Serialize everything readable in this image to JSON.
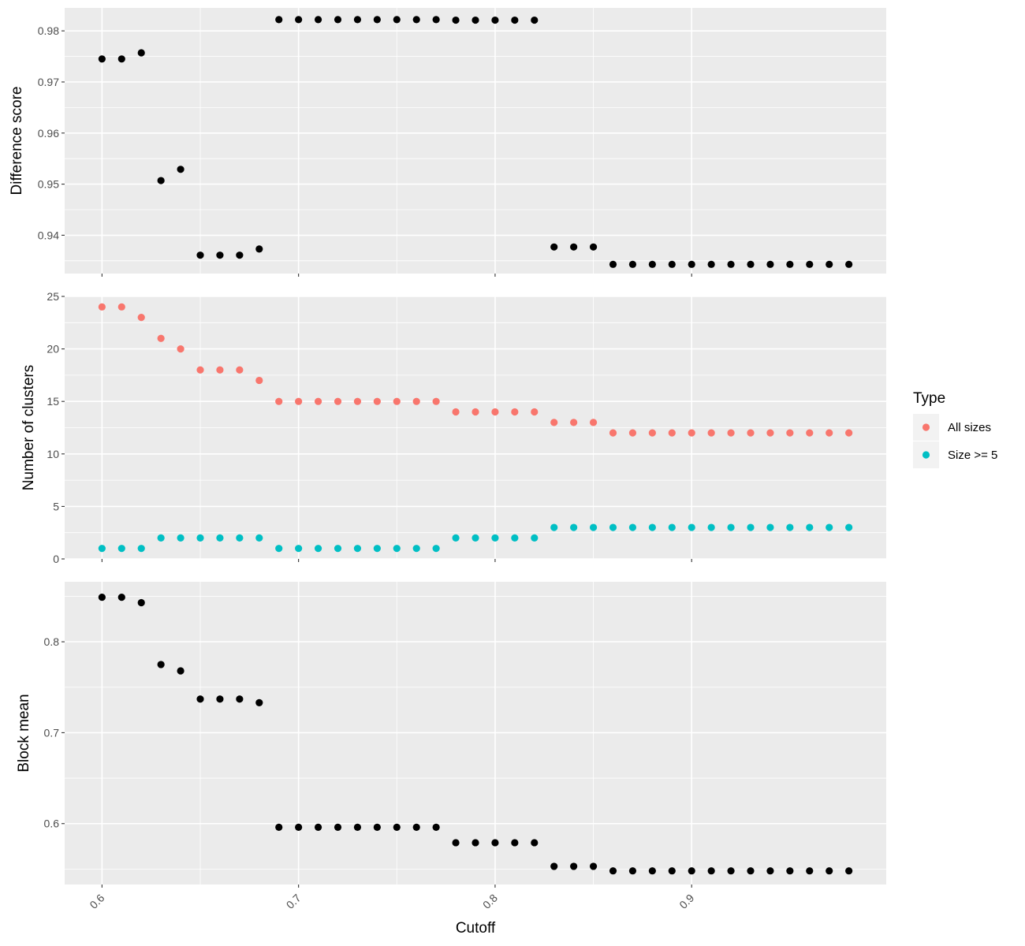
{
  "chart_data": [
    {
      "type": "scatter",
      "ylabel": "Difference score",
      "ylim": [
        0.9325,
        0.9845
      ],
      "y_ticks": [
        0.94,
        0.95,
        0.96,
        0.97,
        0.98
      ],
      "y_tick_labels": [
        "0.94",
        "0.95",
        "0.96",
        "0.97",
        "0.98"
      ],
      "series": [
        {
          "color": "#000000",
          "x": [
            0.6,
            0.61,
            0.62,
            0.63,
            0.64,
            0.65,
            0.66,
            0.67,
            0.68,
            0.69,
            0.7,
            0.71,
            0.72,
            0.73,
            0.74,
            0.75,
            0.76,
            0.77,
            0.78,
            0.79,
            0.8,
            0.81,
            0.82,
            0.83,
            0.84,
            0.85,
            0.86,
            0.87,
            0.88,
            0.89,
            0.9,
            0.91,
            0.92,
            0.93,
            0.94,
            0.95,
            0.96,
            0.97,
            0.98
          ],
          "y": [
            0.9745,
            0.9745,
            0.9757,
            0.9507,
            0.9529,
            0.9361,
            0.9361,
            0.9361,
            0.9373,
            0.9822,
            0.9822,
            0.9822,
            0.9822,
            0.9822,
            0.9822,
            0.9822,
            0.9822,
            0.9822,
            0.9821,
            0.9821,
            0.9821,
            0.9821,
            0.9821,
            0.9377,
            0.9377,
            0.9377,
            0.9343,
            0.9343,
            0.9343,
            0.9343,
            0.9343,
            0.9343,
            0.9343,
            0.9343,
            0.9343,
            0.9343,
            0.9343,
            0.9343,
            0.9343
          ]
        }
      ]
    },
    {
      "type": "scatter",
      "ylabel": "Number of clusters",
      "ylim": [
        0,
        25
      ],
      "y_ticks": [
        0,
        5,
        10,
        15,
        20,
        25
      ],
      "y_tick_labels": [
        "0",
        "5",
        "10",
        "15",
        "20",
        "25"
      ],
      "series": [
        {
          "name": "All sizes",
          "color": "#F8766D",
          "x": [
            0.6,
            0.61,
            0.62,
            0.63,
            0.64,
            0.65,
            0.66,
            0.67,
            0.68,
            0.69,
            0.7,
            0.71,
            0.72,
            0.73,
            0.74,
            0.75,
            0.76,
            0.77,
            0.78,
            0.79,
            0.8,
            0.81,
            0.82,
            0.83,
            0.84,
            0.85,
            0.86,
            0.87,
            0.88,
            0.89,
            0.9,
            0.91,
            0.92,
            0.93,
            0.94,
            0.95,
            0.96,
            0.97,
            0.98
          ],
          "y": [
            24,
            24,
            23,
            21,
            20,
            18,
            18,
            18,
            17,
            15,
            15,
            15,
            15,
            15,
            15,
            15,
            15,
            15,
            14,
            14,
            14,
            14,
            14,
            13,
            13,
            13,
            12,
            12,
            12,
            12,
            12,
            12,
            12,
            12,
            12,
            12,
            12,
            12,
            12
          ]
        },
        {
          "name": "Size >= 5",
          "color": "#00BFC4",
          "x": [
            0.6,
            0.61,
            0.62,
            0.63,
            0.64,
            0.65,
            0.66,
            0.67,
            0.68,
            0.69,
            0.7,
            0.71,
            0.72,
            0.73,
            0.74,
            0.75,
            0.76,
            0.77,
            0.78,
            0.79,
            0.8,
            0.81,
            0.82,
            0.83,
            0.84,
            0.85,
            0.86,
            0.87,
            0.88,
            0.89,
            0.9,
            0.91,
            0.92,
            0.93,
            0.94,
            0.95,
            0.96,
            0.97,
            0.98
          ],
          "y": [
            1,
            1,
            1,
            2,
            2,
            2,
            2,
            2,
            2,
            1,
            1,
            1,
            1,
            1,
            1,
            1,
            1,
            1,
            2,
            2,
            2,
            2,
            2,
            3,
            3,
            3,
            3,
            3,
            3,
            3,
            3,
            3,
            3,
            3,
            3,
            3,
            3,
            3,
            3
          ]
        }
      ]
    },
    {
      "type": "scatter",
      "ylabel": "Block mean",
      "ylim": [
        0.533,
        0.866
      ],
      "y_ticks": [
        0.6,
        0.7,
        0.8
      ],
      "y_tick_labels": [
        "0.6",
        "0.7",
        "0.8"
      ],
      "series": [
        {
          "color": "#000000",
          "x": [
            0.6,
            0.61,
            0.62,
            0.63,
            0.64,
            0.65,
            0.66,
            0.67,
            0.68,
            0.69,
            0.7,
            0.71,
            0.72,
            0.73,
            0.74,
            0.75,
            0.76,
            0.77,
            0.78,
            0.79,
            0.8,
            0.81,
            0.82,
            0.83,
            0.84,
            0.85,
            0.86,
            0.87,
            0.88,
            0.89,
            0.9,
            0.91,
            0.92,
            0.93,
            0.94,
            0.95,
            0.96,
            0.97,
            0.98
          ],
          "y": [
            0.849,
            0.849,
            0.843,
            0.775,
            0.768,
            0.737,
            0.737,
            0.737,
            0.733,
            0.596,
            0.596,
            0.596,
            0.596,
            0.596,
            0.596,
            0.596,
            0.596,
            0.596,
            0.579,
            0.579,
            0.579,
            0.579,
            0.579,
            0.553,
            0.553,
            0.553,
            0.548,
            0.548,
            0.548,
            0.548,
            0.548,
            0.548,
            0.548,
            0.548,
            0.548,
            0.548,
            0.548,
            0.548,
            0.548
          ]
        }
      ]
    }
  ],
  "x_axis": {
    "xlabel": "Cutoff",
    "xlim": [
      0.581,
      0.999
    ],
    "ticks": [
      0.6,
      0.7,
      0.8,
      0.9
    ],
    "tick_labels": [
      "0.6",
      "0.7",
      "0.8",
      "0.9"
    ]
  },
  "legend": {
    "title": "Type",
    "position": "right",
    "entries": [
      {
        "label": "All sizes",
        "color": "#F8766D"
      },
      {
        "label": "Size >= 5",
        "color": "#00BFC4"
      }
    ]
  },
  "style": {
    "panel_background": "#EBEBEB",
    "grid": true
  }
}
